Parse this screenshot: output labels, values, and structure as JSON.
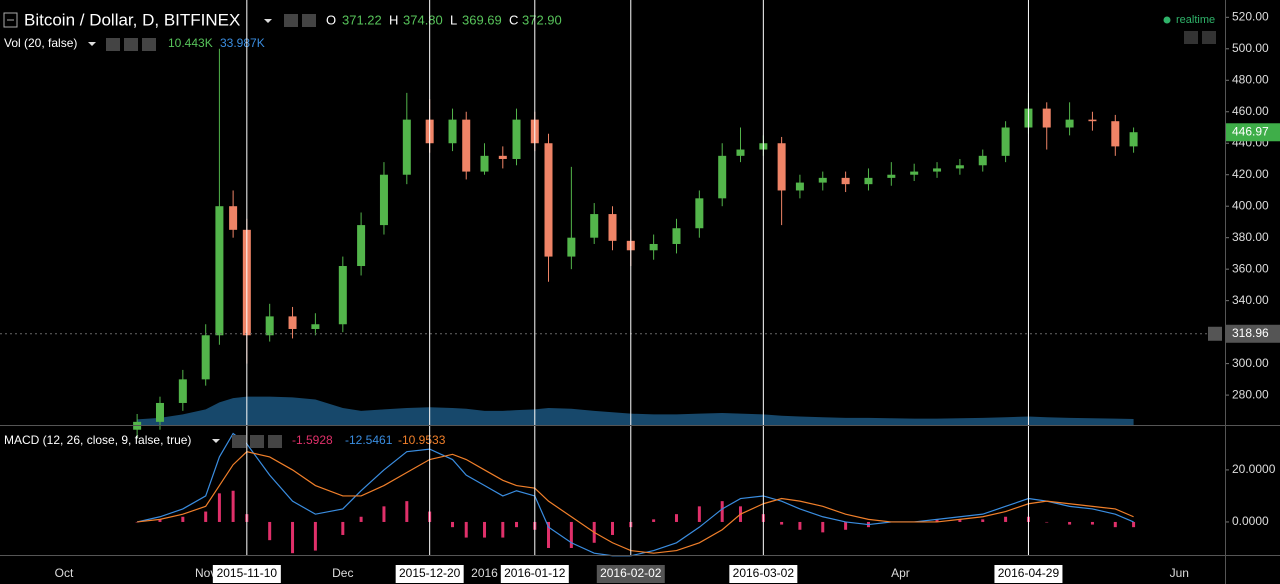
{
  "header": {
    "symbol": "Bitcoin / Dollar, D, BITFINEX",
    "ohlc_labels": [
      "O",
      "H",
      "L",
      "C"
    ],
    "ohlc_values": [
      "371.22",
      "374.80",
      "369.69",
      "372.90"
    ],
    "volume_title": "Vol (20, false)",
    "volume_values": [
      "10.443K",
      "33.987K"
    ],
    "realtime": "realtime"
  },
  "chart_data": [
    {
      "type": "candlestick",
      "x": [
        "2015-10-17",
        "2015-10-22",
        "2015-10-27",
        "2015-11-01",
        "2015-11-04",
        "2015-11-07",
        "2015-11-10",
        "2015-11-15",
        "2015-11-20",
        "2015-11-25",
        "2015-12-01",
        "2015-12-05",
        "2015-12-10",
        "2015-12-15",
        "2015-12-20",
        "2015-12-25",
        "2015-12-28",
        "2016-01-01",
        "2016-01-05",
        "2016-01-08",
        "2016-01-12",
        "2016-01-15",
        "2016-01-20",
        "2016-01-25",
        "2016-01-29",
        "2016-02-02",
        "2016-02-07",
        "2016-02-12",
        "2016-02-17",
        "2016-02-22",
        "2016-02-26",
        "2016-03-02",
        "2016-03-06",
        "2016-03-10",
        "2016-03-15",
        "2016-03-20",
        "2016-03-25",
        "2016-03-30",
        "2016-04-04",
        "2016-04-09",
        "2016-04-14",
        "2016-04-19",
        "2016-04-24",
        "2016-04-29",
        "2016-05-03",
        "2016-05-08",
        "2016-05-13",
        "2016-05-18",
        "2016-05-22"
      ],
      "open": [
        258,
        263,
        275,
        290,
        318,
        400,
        385,
        318,
        330,
        322,
        325,
        362,
        388,
        420,
        455,
        440,
        455,
        422,
        432,
        430,
        455,
        440,
        368,
        380,
        395,
        378,
        372,
        376,
        386,
        405,
        432,
        436,
        440,
        410,
        415,
        418,
        414,
        418,
        420,
        422,
        424,
        426,
        432,
        450,
        462,
        450,
        455,
        454,
        438
      ],
      "high": [
        268,
        279,
        296,
        325,
        500,
        410,
        392,
        338,
        336,
        332,
        368,
        396,
        428,
        472,
        468,
        462,
        460,
        440,
        438,
        462,
        460,
        446,
        425,
        402,
        400,
        385,
        382,
        392,
        410,
        440,
        450,
        445,
        444,
        420,
        422,
        422,
        424,
        428,
        427,
        428,
        430,
        436,
        454,
        472,
        466,
        466,
        460,
        458,
        450
      ],
      "low": [
        253,
        258,
        270,
        286,
        312,
        380,
        300,
        314,
        316,
        318,
        320,
        356,
        382,
        414,
        434,
        435,
        417,
        420,
        424,
        426,
        435,
        352,
        360,
        376,
        372,
        362,
        366,
        370,
        380,
        400,
        428,
        432,
        388,
        405,
        410,
        409,
        410,
        413,
        416,
        418,
        420,
        422,
        428,
        446,
        436,
        445,
        448,
        432,
        434
      ],
      "close": [
        263,
        275,
        290,
        318,
        400,
        385,
        318,
        330,
        322,
        325,
        362,
        388,
        420,
        455,
        440,
        455,
        422,
        432,
        430,
        455,
        440,
        368,
        380,
        395,
        378,
        372,
        376,
        386,
        405,
        432,
        436,
        440,
        410,
        415,
        418,
        414,
        418,
        420,
        422,
        424,
        426,
        432,
        450,
        462,
        450,
        455,
        454,
        438,
        447
      ],
      "up_color": "#53b54b",
      "down_color": "#ef8467",
      "volume_ma": [
        8000,
        10000,
        15000,
        22000,
        32000,
        38000,
        40000,
        40000,
        39000,
        36000,
        24000,
        20000,
        22000,
        24000,
        25000,
        24000,
        23000,
        20000,
        20000,
        21000,
        22000,
        24000,
        23000,
        20000,
        18000,
        16000,
        15000,
        15000,
        16000,
        17000,
        16000,
        15000,
        13000,
        12000,
        11000,
        10000,
        10000,
        9500,
        9000,
        9000,
        9500,
        10000,
        11000,
        12000,
        11000,
        10000,
        9500,
        9000,
        8500
      ],
      "volume_ylim": [
        0,
        120000
      ],
      "volume_color": "#1d5a86",
      "xlim": [
        "2015-09-17",
        "2016-06-11"
      ],
      "xticks": [
        {
          "value": "2015-10-01",
          "label": "Oct"
        },
        {
          "value": "2015-11-01",
          "label": "Nov"
        },
        {
          "value": "2015-12-01",
          "label": "Dec"
        },
        {
          "value": "2016-01-01",
          "label": "2016"
        },
        {
          "value": "2016-04-01",
          "label": "Apr"
        },
        {
          "value": "2016-06-01",
          "label": "Jun"
        }
      ],
      "markers": [
        {
          "date": "2015-11-10",
          "label_bg": "#ffffff"
        },
        {
          "date": "2015-12-20",
          "label_bg": "#ffffff"
        },
        {
          "date": "2016-01-12",
          "label_bg": "#ffffff"
        },
        {
          "date": "2016-02-02",
          "label_bg": "#555555"
        },
        {
          "date": "2016-03-02",
          "label_bg": "#ffffff"
        },
        {
          "date": "2016-04-29",
          "label_bg": "#ffffff"
        }
      ],
      "ylim": [
        261,
        531
      ],
      "yticks": [
        {
          "value": 280,
          "label": "280.00"
        },
        {
          "value": 300,
          "label": "300.00"
        },
        {
          "value": 320,
          "label": "320.00"
        },
        {
          "value": 340,
          "label": "340.00"
        },
        {
          "value": 360,
          "label": "360.00"
        },
        {
          "value": 380,
          "label": "380.00"
        },
        {
          "value": 400,
          "label": "400.00"
        },
        {
          "value": 420,
          "label": "420.00"
        },
        {
          "value": 440,
          "label": "440.00"
        },
        {
          "value": 460,
          "label": "460.00"
        },
        {
          "value": 480,
          "label": "480.00"
        },
        {
          "value": 500,
          "label": "500.00"
        },
        {
          "value": 520,
          "label": "520.00"
        }
      ],
      "last_price": {
        "value": 446.97,
        "label": "446.97"
      },
      "crosshair": {
        "value": 318.96,
        "label": "318.96"
      }
    },
    {
      "type": "macd",
      "title": "MACD (12, 26, close, 9, false, true)",
      "readout": [
        "-1.5928",
        "-12.5461",
        "-10.9533"
      ],
      "readout_colors": [
        "#e0306a",
        "#3a8de0",
        "#f07f2a"
      ],
      "series": [
        {
          "color": "#3a8de0",
          "values": [
            0,
            2,
            5,
            10,
            25,
            34,
            30,
            18,
            8,
            3,
            5,
            12,
            20,
            27,
            28,
            24,
            18,
            14,
            10,
            12,
            10,
            -2,
            -8,
            -12,
            -13,
            -13,
            -11,
            -8,
            -2,
            5,
            9,
            10,
            8,
            5,
            2,
            0,
            -1,
            0,
            0,
            1,
            2,
            3,
            6,
            9,
            8,
            6,
            5,
            3,
            0
          ]
        },
        {
          "color": "#f07f2a",
          "values": [
            0,
            1,
            3,
            6,
            14,
            22,
            27,
            25,
            20,
            14,
            10,
            10,
            14,
            19,
            24,
            26,
            24,
            20,
            16,
            14,
            13,
            8,
            2,
            -4,
            -8,
            -11,
            -12,
            -11,
            -8,
            -3,
            3,
            7,
            9,
            8,
            6,
            3,
            1,
            0,
            0,
            0,
            1,
            2,
            4,
            7,
            8,
            7,
            6,
            5,
            2
          ]
        }
      ],
      "histogram": {
        "color": "#e0306a",
        "values": [
          0,
          1,
          2,
          4,
          11,
          12,
          3,
          -7,
          -12,
          -11,
          -5,
          2,
          6,
          8,
          4,
          -2,
          -6,
          -6,
          -6,
          -2,
          -3,
          -10,
          -10,
          -8,
          -5,
          -2,
          1,
          3,
          6,
          8,
          6,
          3,
          -1,
          -3,
          -4,
          -3,
          -2,
          0,
          0,
          1,
          1,
          1,
          2,
          2,
          0,
          -1,
          -1,
          -2,
          -2
        ]
      },
      "ylim": [
        -12.7,
        36.5
      ],
      "yticks": [
        {
          "value": 0,
          "label": "0.0000"
        },
        {
          "value": 20,
          "label": "20.0000"
        }
      ]
    }
  ]
}
